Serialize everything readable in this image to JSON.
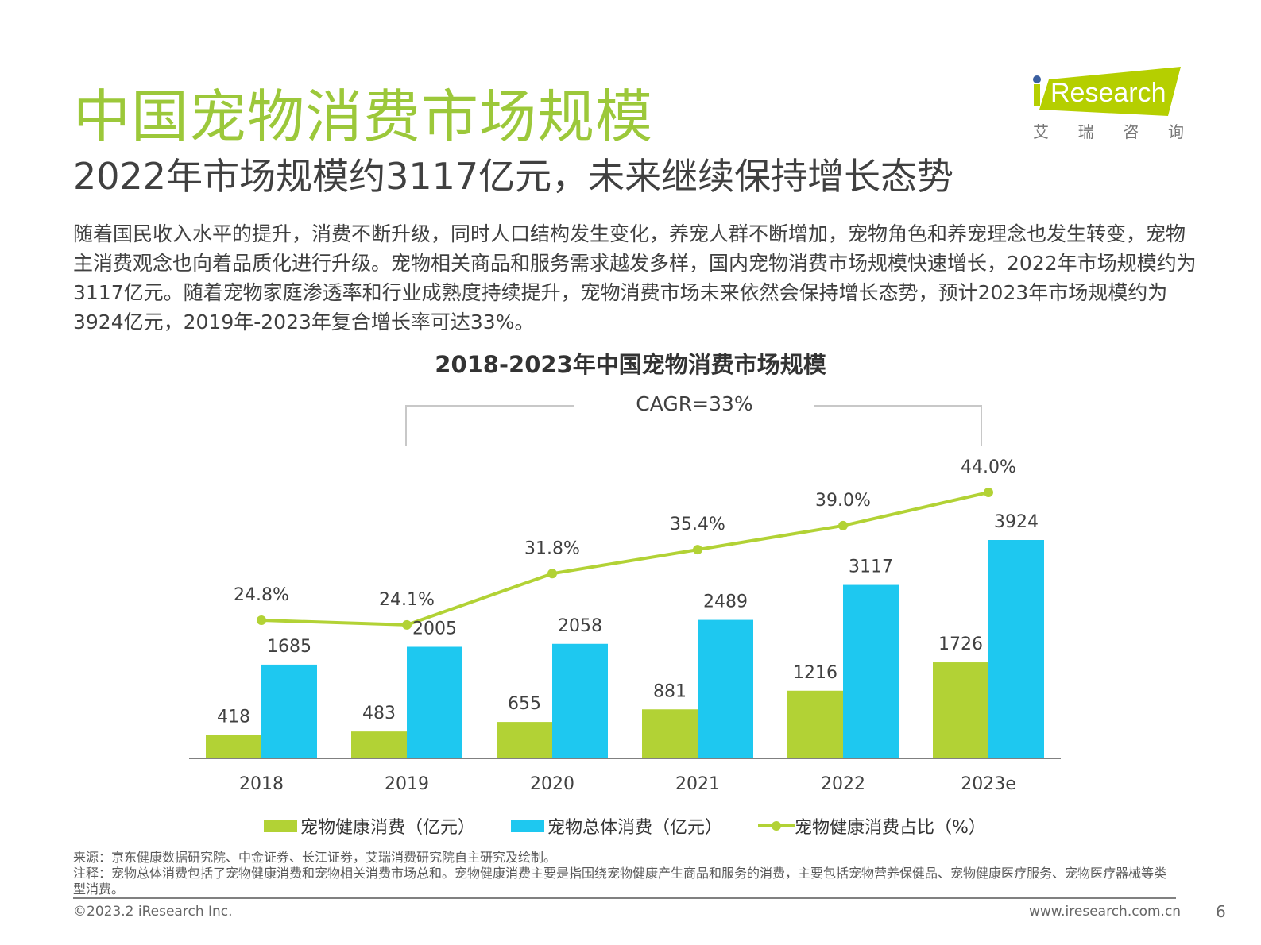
{
  "header": {
    "title": "中国宠物消费市场规模",
    "subtitle": "2022年市场规模约3117亿元，未来继续保持增长态势"
  },
  "logo": {
    "text": "iResearch",
    "cn": [
      "艾",
      "瑞",
      "咨",
      "询"
    ],
    "color": "#b5cf00",
    "dot_color": "#3a5fa0"
  },
  "body_text": "随着国民收入水平的提升，消费不断升级，同时人口结构发生变化，养宠人群不断增加，宠物角色和养宠理念也发生转变，宠物主消费观念也向着品质化进行升级。宠物相关商品和服务需求越发多样，国内宠物消费市场规模快速增长，2022年市场规模约为3117亿元。随着宠物家庭渗透率和行业成熟度持续提升，宠物消费市场未来依然会保持增长态势，预计2023年市场规模约为3924亿元，2019年-2023年复合增长率可达33%。",
  "chart_data": {
    "type": "bar+line",
    "title": "2018-2023年中国宠物消费市场规模",
    "annotation": "CAGR=33%",
    "categories": [
      "2018",
      "2019",
      "2020",
      "2021",
      "2022",
      "2023e"
    ],
    "series": [
      {
        "name": "宠物健康消费（亿元）",
        "type": "bar",
        "color": "#b2d235",
        "values": [
          418,
          483,
          655,
          881,
          1216,
          1726
        ]
      },
      {
        "name": "宠物总体消费（亿元）",
        "type": "bar",
        "color": "#1ec8f0",
        "values": [
          1685,
          2005,
          2058,
          2489,
          3117,
          3924
        ]
      },
      {
        "name": "宠物健康消费占比（%）",
        "type": "line",
        "color": "#b2d235",
        "values": [
          24.8,
          24.1,
          31.8,
          35.4,
          39.0,
          44.0
        ],
        "labels": [
          "24.8%",
          "24.1%",
          "31.8%",
          "35.4%",
          "39.0%",
          "44.0%"
        ]
      }
    ],
    "legend": "bottom",
    "grid": false
  },
  "footer": {
    "source": "来源：京东健康数据研究院、中金证券、长江证券，艾瑞消费研究院自主研究及绘制。",
    "note": "注释：宠物总体消费包括了宠物健康消费和宠物相关消费市场总和。宠物健康消费主要是指围绕宠物健康产生商品和服务的消费，主要包括宠物营养保健品、宠物健康医疗服务、宠物医疗器械等类型消费。",
    "copyright": "©2023.2 iResearch Inc.",
    "url": "www.iresearch.com.cn",
    "page": "6"
  }
}
